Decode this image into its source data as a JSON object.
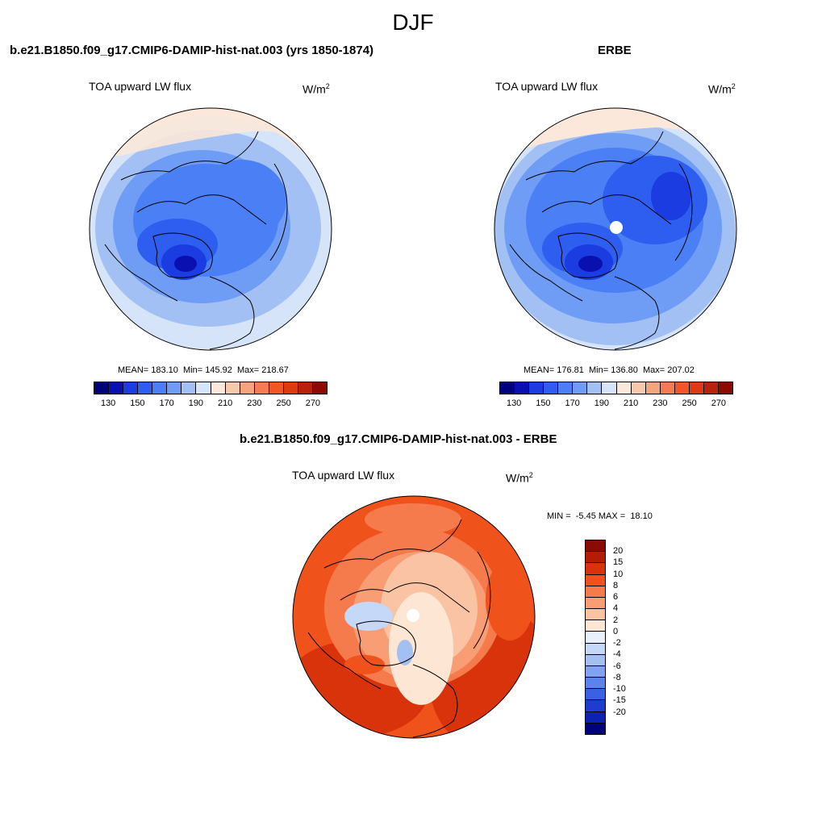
{
  "figure": {
    "title": "DJF"
  },
  "panels": [
    {
      "id": "model",
      "title": "b.e21.B1850.f09_g17.CMIP6-DAMIP-hist-nat.003 (yrs 1850-1874)",
      "variable": "TOA upward LW flux",
      "units_base": "W/m",
      "units_exp": "2",
      "stats_text": "MEAN= 183.10  Min= 145.92  Max= 218.67",
      "stats": {
        "mean": 183.1,
        "min": 145.92,
        "max": 218.67
      }
    },
    {
      "id": "obs",
      "title": "ERBE",
      "variable": "TOA upward LW flux",
      "units_base": "W/m",
      "units_exp": "2",
      "stats_text": "MEAN= 176.81  Min= 136.80  Max= 207.02",
      "stats": {
        "mean": 176.81,
        "min": 136.8,
        "max": 207.02
      }
    },
    {
      "id": "diff",
      "title": "b.e21.B1850.f09_g17.CMIP6-DAMIP-hist-nat.003 - ERBE",
      "variable": "TOA upward LW flux",
      "units_base": "W/m",
      "units_exp": "2",
      "stats_text": "MIN =  -5.45 MAX =  18.10",
      "stats": {
        "min": -5.45,
        "max": 18.1
      }
    }
  ],
  "colorbar_abs": {
    "colors": [
      "#00007a",
      "#0a10b0",
      "#1a3ce0",
      "#2e5ef0",
      "#4a7ff5",
      "#6f9cf5",
      "#a3c0f5",
      "#d6e4fa",
      "#fbe8da",
      "#f8c8ac",
      "#f6a47c",
      "#f47c50",
      "#f05626",
      "#dd3a12",
      "#b8220a",
      "#8b0a02"
    ],
    "tick_labels": [
      "130",
      "150",
      "170",
      "190",
      "210",
      "230",
      "250",
      "270"
    ]
  },
  "colorbar_diff": {
    "colors": [
      "#8b0a02",
      "#b51c06",
      "#d9330b",
      "#f0521c",
      "#f57a4c",
      "#f89d74",
      "#fac3a3",
      "#fde6d4",
      "#e8f0fb",
      "#c6d8f7",
      "#a4bff2",
      "#7fa3f0",
      "#5a84ec",
      "#3a60e4",
      "#1f3cd0",
      "#0d22b0",
      "#00007a"
    ],
    "tick_labels": [
      "20",
      "15",
      "10",
      "8",
      "6",
      "4",
      "2",
      "0",
      "-2",
      "-4",
      "-6",
      "-8",
      "-10",
      "-15",
      "-20"
    ]
  }
}
